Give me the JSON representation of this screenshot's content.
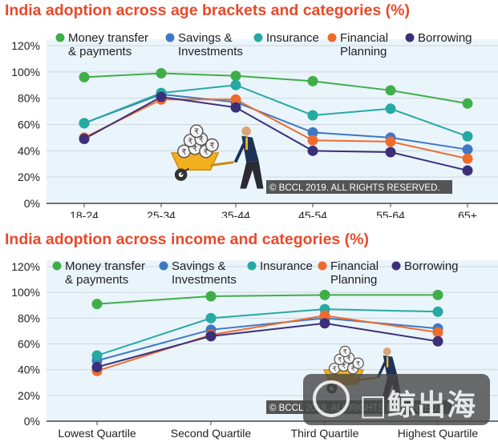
{
  "chart_data": [
    {
      "type": "line",
      "title": "India adoption across age brackets and categories (%)",
      "categories": [
        "18-24",
        "25-34",
        "35-44",
        "45-54",
        "55-64",
        "65+"
      ],
      "ylim": [
        0,
        120
      ],
      "yticks": [
        "0%",
        "20%",
        "40%",
        "60%",
        "80%",
        "100%",
        "120%"
      ],
      "grid": true,
      "legend_position": "top",
      "series": [
        {
          "name": "Money transfer\n& payments",
          "color": "#3fae49",
          "values": [
            96,
            99,
            97,
            93,
            86,
            76
          ]
        },
        {
          "name": "Savings &\nInvestments",
          "color": "#3e78c4",
          "values": [
            61,
            83,
            77,
            54,
            50,
            41
          ]
        },
        {
          "name": "Insurance",
          "color": "#25a9a3",
          "values": [
            61,
            84,
            90,
            67,
            72,
            51
          ]
        },
        {
          "name": "Financial\nPlanning",
          "color": "#ef6b2c",
          "values": [
            50,
            79,
            79,
            48,
            47,
            34
          ]
        },
        {
          "name": "Borrowing",
          "color": "#3b2f7a",
          "values": [
            49,
            81,
            73,
            40,
            39,
            25
          ]
        }
      ],
      "copyright": "© BCCL 2019. ALL RIGHTS RESERVED."
    },
    {
      "type": "line",
      "title": "India adoption across income and categories (%)",
      "categories": [
        "Lowest Quartile",
        "Second Quartile",
        "Third Quartile",
        "Highest Quartile"
      ],
      "ylim": [
        0,
        120
      ],
      "yticks": [
        "0%",
        "20%",
        "40%",
        "60%",
        "80%",
        "100%",
        "120%"
      ],
      "grid": true,
      "legend_position": "top",
      "series": [
        {
          "name": "Money transfer\n& payments",
          "color": "#3fae49",
          "values": [
            91,
            97,
            98,
            98
          ]
        },
        {
          "name": "Savings &\nInvestments",
          "color": "#3e78c4",
          "values": [
            47,
            71,
            80,
            72
          ]
        },
        {
          "name": "Insurance",
          "color": "#25a9a3",
          "values": [
            51,
            80,
            87,
            85
          ]
        },
        {
          "name": "Financial\nPlanning",
          "color": "#ef6b2c",
          "values": [
            39,
            67,
            82,
            69
          ]
        },
        {
          "name": "Borrowing",
          "color": "#3b2f7a",
          "values": [
            42,
            66,
            76,
            62
          ]
        }
      ],
      "copyright": "© BCCL 2019. ALL RIGHTS RESERVED."
    }
  ],
  "watermark_text": "□鲸出海"
}
